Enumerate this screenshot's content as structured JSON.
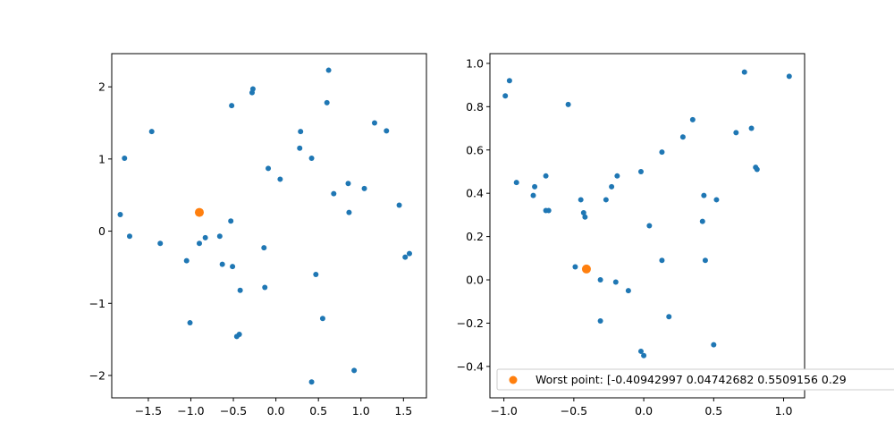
{
  "colors": {
    "points": "#1f77b4",
    "worst": "#ff7f0e",
    "axes": "#000000",
    "background": "#ffffff",
    "legend_border": "#cccccc"
  },
  "legend_label": "Worst point: [-0.40942997  0.04742682  0.5509156   0.29",
  "chart_data": [
    {
      "type": "scatter",
      "title": "",
      "xlabel": "",
      "ylabel": "",
      "xlim": [
        -1.93,
        1.77
      ],
      "ylim": [
        -2.31,
        2.46
      ],
      "xticks": [
        -1.5,
        -1.0,
        -0.5,
        0.0,
        0.5,
        1.0,
        1.5
      ],
      "xtick_labels": [
        "−1.5",
        "−1.0",
        "−0.5",
        "0.0",
        "0.5",
        "1.0",
        "1.5"
      ],
      "yticks": [
        -2,
        -1,
        0,
        1,
        2
      ],
      "ytick_labels": [
        "−2",
        "−1",
        "0",
        "1",
        "2"
      ],
      "grid": false,
      "series": [
        {
          "points": [
            [
              0.62,
              2.23
            ],
            [
              -0.27,
              1.97
            ],
            [
              -0.28,
              1.92
            ],
            [
              -0.52,
              1.74
            ],
            [
              0.6,
              1.78
            ],
            [
              -1.46,
              1.38
            ],
            [
              0.29,
              1.38
            ],
            [
              1.16,
              1.5
            ],
            [
              1.3,
              1.39
            ],
            [
              -1.78,
              1.01
            ],
            [
              0.28,
              1.15
            ],
            [
              0.42,
              1.01
            ],
            [
              -0.09,
              0.87
            ],
            [
              0.05,
              0.72
            ],
            [
              0.85,
              0.66
            ],
            [
              0.68,
              0.52
            ],
            [
              1.04,
              0.59
            ],
            [
              1.45,
              0.36
            ],
            [
              0.86,
              0.26
            ],
            [
              -1.83,
              0.23
            ],
            [
              -0.53,
              0.14
            ],
            [
              -1.72,
              -0.07
            ],
            [
              -0.83,
              -0.09
            ],
            [
              -0.66,
              -0.07
            ],
            [
              -0.9,
              -0.17
            ],
            [
              -1.36,
              -0.17
            ],
            [
              -0.14,
              -0.23
            ],
            [
              1.52,
              -0.36
            ],
            [
              1.57,
              -0.31
            ],
            [
              -1.05,
              -0.41
            ],
            [
              -0.63,
              -0.46
            ],
            [
              -0.51,
              -0.49
            ],
            [
              0.47,
              -0.6
            ],
            [
              -0.42,
              -0.82
            ],
            [
              -0.13,
              -0.78
            ],
            [
              0.55,
              -1.21
            ],
            [
              -1.01,
              -1.27
            ],
            [
              -0.46,
              -1.46
            ],
            [
              -0.43,
              -1.43
            ],
            [
              0.92,
              -1.93
            ],
            [
              0.42,
              -2.09
            ]
          ]
        },
        {
          "points": [
            [
              -0.9,
              0.26
            ]
          ]
        }
      ]
    },
    {
      "type": "scatter",
      "title": "",
      "xlabel": "",
      "ylabel": "",
      "xlim": [
        -1.1,
        1.15
      ],
      "ylim": [
        -0.545,
        1.045
      ],
      "xticks": [
        -1.0,
        -0.5,
        0.0,
        0.5,
        1.0
      ],
      "xtick_labels": [
        "−1.0",
        "−0.5",
        "0.0",
        "0.5",
        "1.0"
      ],
      "yticks": [
        -0.4,
        -0.2,
        0.0,
        0.2,
        0.4,
        0.6,
        0.8,
        1.0
      ],
      "ytick_labels": [
        "−0.4",
        "−0.2",
        "0.0",
        "0.2",
        "0.4",
        "0.6",
        "0.8",
        "1.0"
      ],
      "grid": false,
      "legend": {
        "position": "lower-left"
      },
      "series": [
        {
          "points": [
            [
              -0.96,
              0.92
            ],
            [
              -0.99,
              0.85
            ],
            [
              0.72,
              0.96
            ],
            [
              1.04,
              0.94
            ],
            [
              -0.54,
              0.81
            ],
            [
              0.35,
              0.74
            ],
            [
              0.77,
              0.7
            ],
            [
              0.66,
              0.68
            ],
            [
              0.28,
              0.66
            ],
            [
              0.13,
              0.59
            ],
            [
              0.8,
              0.52
            ],
            [
              0.81,
              0.51
            ],
            [
              -0.02,
              0.5
            ],
            [
              -0.7,
              0.48
            ],
            [
              -0.19,
              0.48
            ],
            [
              -0.91,
              0.45
            ],
            [
              -0.78,
              0.43
            ],
            [
              -0.23,
              0.43
            ],
            [
              -0.79,
              0.39
            ],
            [
              0.43,
              0.39
            ],
            [
              -0.45,
              0.37
            ],
            [
              -0.27,
              0.37
            ],
            [
              0.52,
              0.37
            ],
            [
              -0.7,
              0.32
            ],
            [
              -0.68,
              0.32
            ],
            [
              -0.43,
              0.31
            ],
            [
              -0.42,
              0.29
            ],
            [
              0.42,
              0.27
            ],
            [
              0.04,
              0.25
            ],
            [
              0.13,
              0.09
            ],
            [
              0.44,
              0.09
            ],
            [
              -0.49,
              0.06
            ],
            [
              -0.31,
              0.0
            ],
            [
              -0.2,
              -0.01
            ],
            [
              -0.11,
              -0.05
            ],
            [
              0.18,
              -0.17
            ],
            [
              -0.31,
              -0.19
            ],
            [
              0.5,
              -0.3
            ],
            [
              -0.02,
              -0.33
            ],
            [
              0.0,
              -0.35
            ]
          ]
        },
        {
          "name": "Worst point: [-0.40942997  0.04742682  0.5509156   0.29",
          "points": [
            [
              -0.41,
              0.05
            ]
          ]
        }
      ]
    }
  ]
}
